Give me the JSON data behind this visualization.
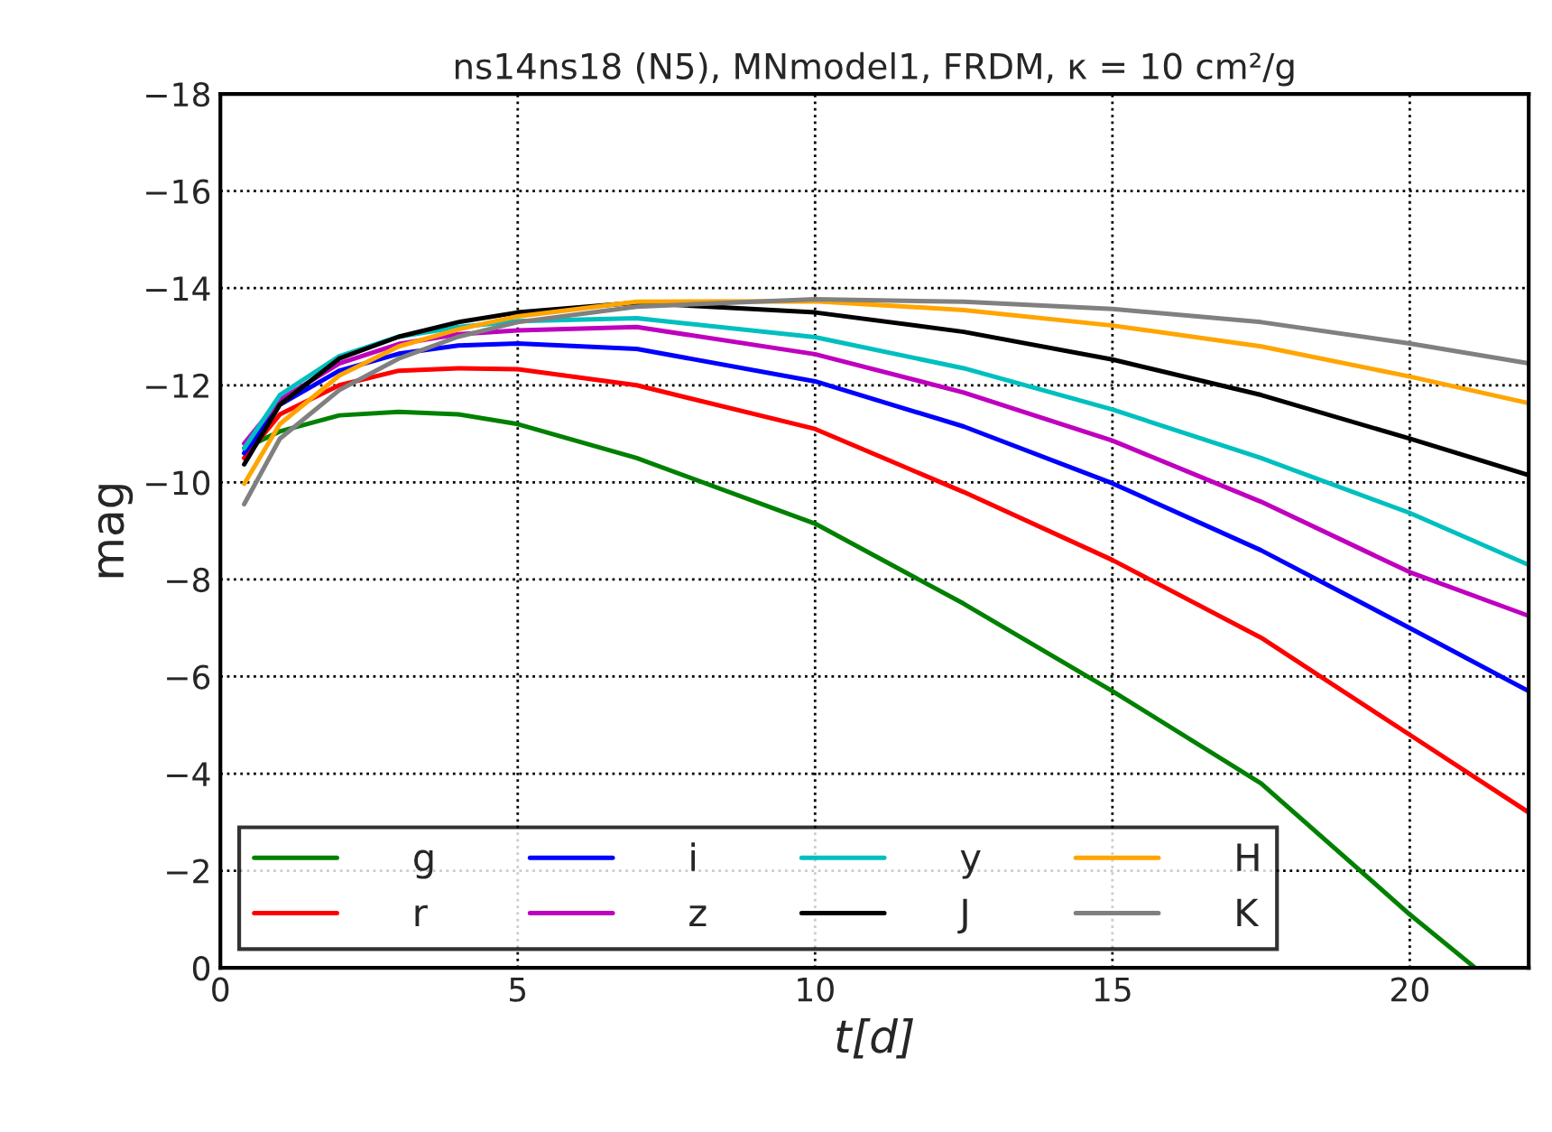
{
  "chart_data": {
    "type": "line",
    "title": "ns14ns18 (N5), MNmodel1, FRDM, κ = 10 cm²/g",
    "xlabel": "t[d]",
    "ylabel": "mag",
    "x": [
      0.4,
      1,
      2,
      3,
      4,
      5,
      7,
      10,
      12.5,
      15,
      17.5,
      20,
      22
    ],
    "series": [
      {
        "name": "g",
        "color": "#008000",
        "x": [
          0.4,
          1,
          2,
          3,
          4,
          5,
          7,
          10,
          12.5,
          15,
          17.5,
          20,
          21.1
        ],
        "values": [
          -10.7,
          -11.05,
          -11.38,
          -11.45,
          -11.4,
          -11.2,
          -10.5,
          -9.15,
          -7.5,
          -5.7,
          -3.8,
          -1.1,
          0
        ]
      },
      {
        "name": "r",
        "color": "#ff0000",
        "values": [
          -10.5,
          -11.4,
          -12.0,
          -12.3,
          -12.35,
          -12.33,
          -12.0,
          -11.1,
          -9.8,
          -8.4,
          -6.8,
          -4.8,
          -3.2
        ]
      },
      {
        "name": "i",
        "color": "#0000ff",
        "values": [
          -10.6,
          -11.6,
          -12.3,
          -12.65,
          -12.82,
          -12.86,
          -12.75,
          -12.08,
          -11.15,
          -9.98,
          -8.6,
          -7.0,
          -5.7
        ]
      },
      {
        "name": "z",
        "color": "#bf00bf",
        "values": [
          -10.8,
          -11.7,
          -12.45,
          -12.85,
          -13.05,
          -13.13,
          -13.2,
          -12.64,
          -11.85,
          -10.86,
          -9.6,
          -8.15,
          -7.25
        ]
      },
      {
        "name": "y",
        "color": "#00bfbf",
        "values": [
          -10.7,
          -11.8,
          -12.6,
          -13.0,
          -13.2,
          -13.32,
          -13.38,
          -12.99,
          -12.35,
          -11.5,
          -10.5,
          -9.37,
          -8.3
        ]
      },
      {
        "name": "J",
        "color": "#000000",
        "values": [
          -10.37,
          -11.6,
          -12.55,
          -13.0,
          -13.3,
          -13.5,
          -13.7,
          -13.5,
          -13.1,
          -12.53,
          -11.8,
          -10.9,
          -10.15
        ]
      },
      {
        "name": "H",
        "color": "#ffa500",
        "values": [
          -9.97,
          -11.2,
          -12.2,
          -12.8,
          -13.15,
          -13.42,
          -13.72,
          -13.73,
          -13.55,
          -13.23,
          -12.8,
          -12.18,
          -11.63
        ]
      },
      {
        "name": "K",
        "color": "#808080",
        "values": [
          -9.55,
          -10.9,
          -11.9,
          -12.55,
          -13.0,
          -13.3,
          -13.62,
          -13.77,
          -13.72,
          -13.57,
          -13.3,
          -12.86,
          -12.45
        ]
      }
    ],
    "xlim": [
      0,
      22
    ],
    "xticks": [
      0,
      5,
      10,
      15,
      20
    ],
    "ylim": [
      0,
      -18
    ],
    "yticks": [
      0,
      {
        "value": -2,
        "label": "−2"
      },
      {
        "value": -4,
        "label": "−4"
      },
      {
        "value": -6,
        "label": "−6"
      },
      {
        "value": -8,
        "label": "−8"
      },
      {
        "value": -10,
        "label": "−10"
      },
      {
        "value": -12,
        "label": "−12"
      },
      {
        "value": -14,
        "label": "−14"
      },
      {
        "value": -16,
        "label": "−16"
      },
      {
        "value": -18,
        "label": "−18"
      }
    ],
    "grid": true,
    "legend": "bottom left",
    "line_style": "solid"
  }
}
